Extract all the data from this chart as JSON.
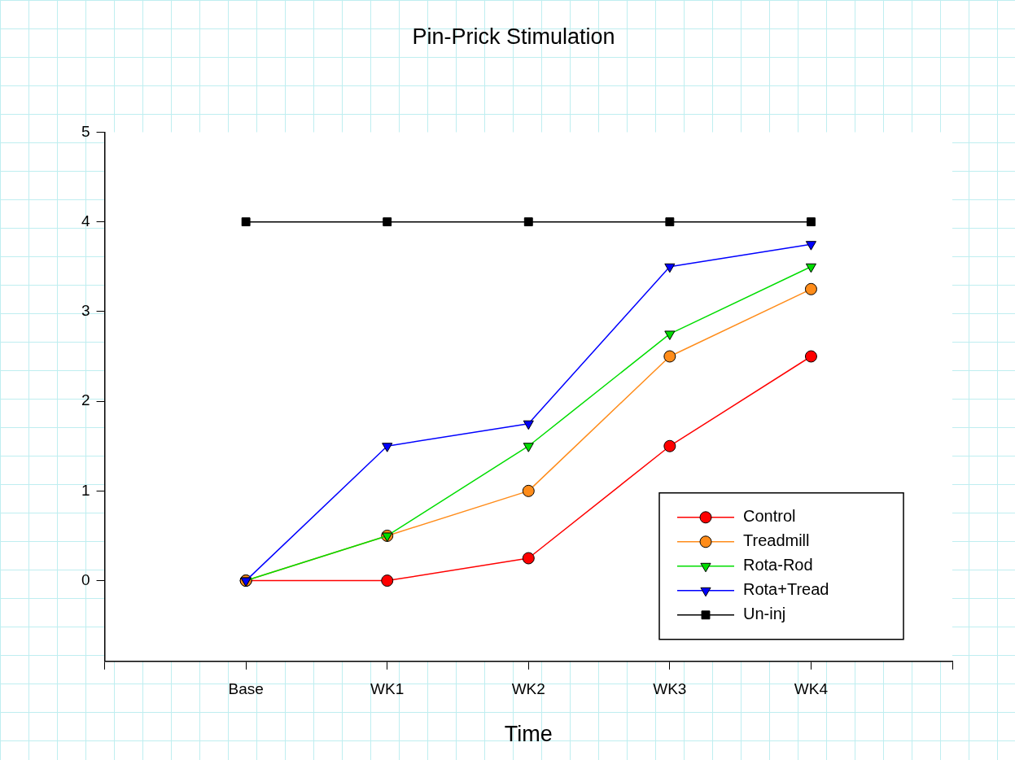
{
  "chart_data": {
    "type": "line",
    "title": "Pin-Prick Stimulation",
    "xlabel": "Time",
    "categories": [
      null,
      "Base",
      "WK1",
      "WK2",
      "WK3",
      "WK4",
      null
    ],
    "series": [
      {
        "name": "Control",
        "color": "#ff0000",
        "marker": "circle",
        "values": [
          null,
          0,
          0,
          0.25,
          1.5,
          2.5,
          null
        ]
      },
      {
        "name": "Treadmill",
        "color": "#ff8c1a",
        "marker": "circle",
        "values": [
          null,
          0,
          0.5,
          1,
          2.5,
          3.25,
          null
        ]
      },
      {
        "name": "Rota-Rod",
        "color": "#00dd00",
        "marker": "triangle",
        "values": [
          null,
          0,
          0.5,
          1.5,
          2.75,
          3.5,
          null
        ]
      },
      {
        "name": "Rota+Tread",
        "color": "#0000ff",
        "marker": "triangle",
        "values": [
          null,
          0,
          1.5,
          1.75,
          3.5,
          3.75,
          null
        ]
      },
      {
        "name": "Un-inj",
        "color": "#000000",
        "marker": "square",
        "values": [
          null,
          4,
          4,
          4,
          4,
          4,
          null
        ]
      }
    ],
    "ylim": [
      -0.9,
      5
    ],
    "yticks": [
      0,
      1,
      2,
      3,
      4,
      5
    ],
    "grid": false,
    "legend": "bottom right",
    "line_style": "solid"
  }
}
